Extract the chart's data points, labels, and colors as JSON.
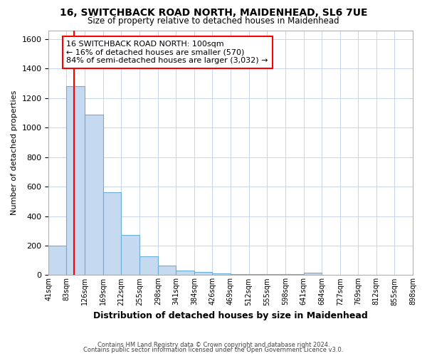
{
  "title1": "16, SWITCHBACK ROAD NORTH, MAIDENHEAD, SL6 7UE",
  "title2": "Size of property relative to detached houses in Maidenhead",
  "xlabel": "Distribution of detached houses by size in Maidenhead",
  "ylabel": "Number of detached properties",
  "footnote1": "Contains HM Land Registry data © Crown copyright and database right 2024.",
  "footnote2": "Contains public sector information licensed under the Open Government Licence v3.0.",
  "annotation_line1": "16 SWITCHBACK ROAD NORTH: 100sqm",
  "annotation_line2": "← 16% of detached houses are smaller (570)",
  "annotation_line3": "84% of semi-detached houses are larger (3,032) →",
  "bar_edges": [
    41,
    83,
    126,
    169,
    212,
    255,
    298,
    341,
    384,
    426,
    469,
    512,
    555,
    598,
    641,
    684,
    727,
    769,
    812,
    855,
    898
  ],
  "bar_heights": [
    200,
    1280,
    1090,
    560,
    270,
    125,
    65,
    30,
    20,
    10,
    8,
    8,
    8,
    5,
    18,
    3,
    2,
    2,
    2,
    2
  ],
  "bar_color": "#c5d9f0",
  "bar_edge_color": "#6baed6",
  "red_line_x": 100,
  "ylim": [
    0,
    1660
  ],
  "yticks": [
    0,
    200,
    400,
    600,
    800,
    1000,
    1200,
    1400,
    1600
  ],
  "xlim_left": 41,
  "xlim_right": 898,
  "bg_color": "#ffffff",
  "plot_bg_color": "#ffffff",
  "grid_color": "#c8d4e8"
}
